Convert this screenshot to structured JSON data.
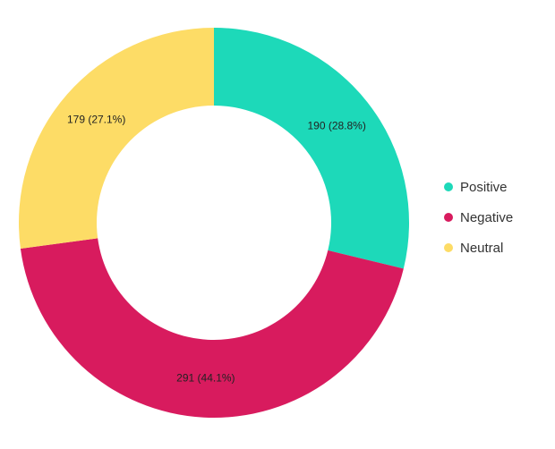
{
  "chart_data": {
    "type": "pie",
    "donut": true,
    "title": "",
    "categories": [
      "Positive",
      "Negative",
      "Neutral"
    ],
    "values": [
      190,
      291,
      179
    ],
    "percent_labels": [
      "28.8%",
      "44.1%",
      "27.1%"
    ],
    "data_labels": [
      "190 (28.8%)",
      "291 (44.1%)",
      "179 (27.1%)"
    ],
    "colors": [
      "#1dd9b9",
      "#d81b5e",
      "#fddc66"
    ],
    "legend_position": "right",
    "start_angle": "top, clockwise"
  },
  "legend": {
    "items": [
      {
        "label": "Positive",
        "color": "#1dd9b9"
      },
      {
        "label": "Negative",
        "color": "#d81b5e"
      },
      {
        "label": "Neutral",
        "color": "#fddc66"
      }
    ]
  }
}
